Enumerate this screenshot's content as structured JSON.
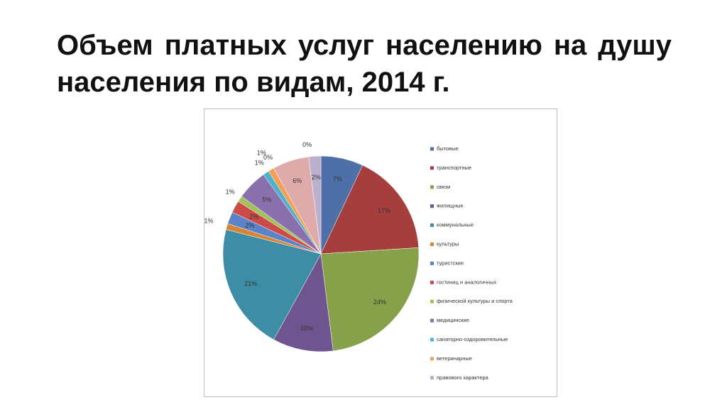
{
  "chart_data": {
    "type": "pie",
    "title": "Объем платных услуг населению на душу населения по видам, 2014 г.",
    "categories": [
      "бытовые",
      "транспортные",
      "связи",
      "жилищные",
      "коммунальные",
      "культуры",
      "туристские",
      "гостиниц и аналогичных",
      "физической культуры и спорта",
      "медицинские",
      "санаторно-оздоровительные",
      "ветеринарные",
      "правового характера",
      null,
      null,
      null
    ],
    "values": [
      7,
      17,
      24,
      10,
      21,
      1,
      2,
      2,
      1,
      5,
      1,
      1,
      0,
      6,
      0,
      2
    ],
    "value_labels": [
      "7%",
      "17%",
      "24%",
      "10%",
      "21%",
      "1%",
      "2%",
      "2%",
      "1%",
      "5%",
      "1%",
      "1%",
      "0%",
      "6%",
      "0%",
      "2%"
    ],
    "colors": [
      "#4f6fa8",
      "#a53f3d",
      "#86a14a",
      "#6e558f",
      "#3d8da6",
      "#d88433",
      "#5a83c9",
      "#cc4a48",
      "#a3c159",
      "#8a70ad",
      "#4fb1cc",
      "#f3a054",
      "#a9b4d4",
      "#dfaaaa",
      "#c9dba9",
      "#bbb1cf"
    ],
    "legend": "right"
  }
}
